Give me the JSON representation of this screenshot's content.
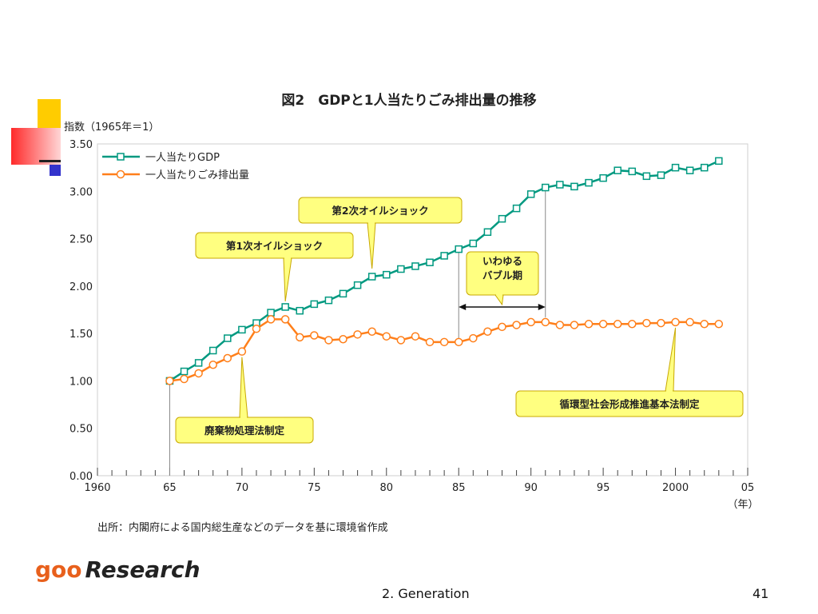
{
  "slide": {
    "footer_center": "2. Generation",
    "page_number": "41",
    "logo_goo": "goo",
    "logo_research": "Research"
  },
  "colors": {
    "gdp": "#009980",
    "waste": "#ff7f1a",
    "callout_fill": "#ffff80",
    "callout_stroke": "#c8a800",
    "deco_yellow": "#ffcc00",
    "deco_red": "#ff3333",
    "deco_blue": "#3333cc"
  },
  "chart_data": {
    "type": "line",
    "title": "図2　GDPと1人当たりごみ排出量の推移",
    "ylabel": "指数（1965年＝1）",
    "xlabel": "（年）",
    "source": "出所：内閣府による国内総生産などのデータを基に環境省作成",
    "ylim": [
      0,
      3.5
    ],
    "xlim": [
      1960,
      2005
    ],
    "y_ticks": [
      "0.00",
      "0.50",
      "1.00",
      "1.50",
      "2.00",
      "2.50",
      "3.00",
      "3.50"
    ],
    "x_ticks": [
      "1960",
      "65",
      "70",
      "75",
      "80",
      "85",
      "90",
      "95",
      "2000",
      "05"
    ],
    "grid": false,
    "legend_position": "top-left",
    "x": [
      1965,
      1966,
      1967,
      1968,
      1969,
      1970,
      1971,
      1972,
      1973,
      1974,
      1975,
      1976,
      1977,
      1978,
      1979,
      1980,
      1981,
      1982,
      1983,
      1984,
      1985,
      1986,
      1987,
      1988,
      1989,
      1990,
      1991,
      1992,
      1993,
      1994,
      1995,
      1996,
      1997,
      1998,
      1999,
      2000,
      2001,
      2002,
      2003
    ],
    "series": [
      {
        "name": "一人当たりGDP",
        "marker": "square",
        "values": [
          1.0,
          1.1,
          1.19,
          1.32,
          1.45,
          1.54,
          1.61,
          1.72,
          1.78,
          1.74,
          1.81,
          1.85,
          1.92,
          2.01,
          2.1,
          2.12,
          2.18,
          2.21,
          2.25,
          2.32,
          2.39,
          2.45,
          2.57,
          2.71,
          2.82,
          2.97,
          3.04,
          3.07,
          3.05,
          3.09,
          3.14,
          3.22,
          3.21,
          3.16,
          3.17,
          3.25,
          3.22,
          3.25,
          3.32
        ]
      },
      {
        "name": "一人当たりごみ排出量",
        "marker": "circle",
        "values": [
          1.0,
          1.02,
          1.08,
          1.17,
          1.24,
          1.31,
          1.55,
          1.65,
          1.65,
          1.46,
          1.48,
          1.43,
          1.44,
          1.49,
          1.52,
          1.47,
          1.43,
          1.47,
          1.41,
          1.41,
          1.41,
          1.45,
          1.52,
          1.57,
          1.59,
          1.62,
          1.62,
          1.59,
          1.59,
          1.6,
          1.6,
          1.6,
          1.6,
          1.61,
          1.61,
          1.62,
          1.62,
          1.6,
          1.6
        ]
      }
    ],
    "annotations": [
      {
        "id": "oil1",
        "text": "第1次オイルショック",
        "year": 1973
      },
      {
        "id": "oil2",
        "text": "第2次オイルショック",
        "year": 1979
      },
      {
        "id": "bubble",
        "text_line1": "いわゆる",
        "text_line2": "バブル期",
        "start": 1985,
        "end": 1991
      },
      {
        "id": "law1",
        "text": "廃棄物処理法制定",
        "year": 1970
      },
      {
        "id": "law2",
        "text": "循環型社会形成推進基本法制定",
        "year": 2000
      }
    ]
  }
}
